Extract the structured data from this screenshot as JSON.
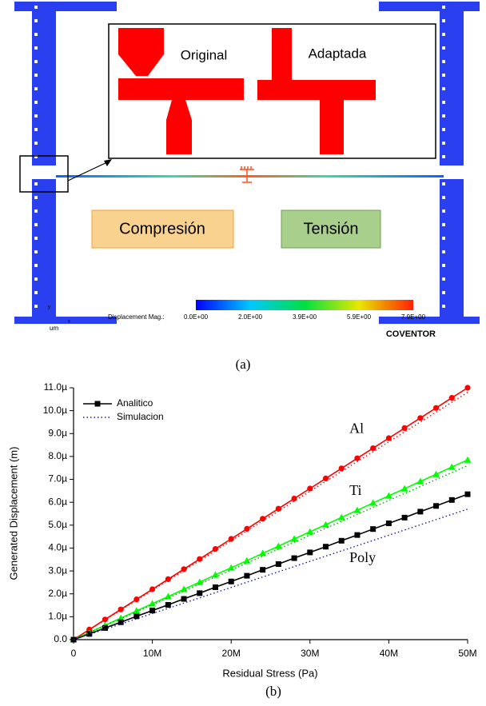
{
  "simulation": {
    "inset_labels": [
      "Original",
      "Adaptada"
    ],
    "regions": [
      "Compresión",
      "Tensión"
    ],
    "colorbar": {
      "label": "Displacement Mag.:",
      "ticks": [
        "0.0E+00",
        "2.0E+00",
        "3.9E+00",
        "5.9E+00",
        "7.9E+00"
      ]
    },
    "axes": [
      "y",
      "x"
    ],
    "unit": "um",
    "brand": "COVENTOR",
    "caption": "(a)"
  },
  "chart_data": {
    "type": "line",
    "caption": "(b)",
    "xlabel": "Residual Stress (Pa)",
    "ylabel": "Generated Displacement (m)",
    "xlim": [
      0,
      50000000
    ],
    "ylim": [
      0,
      1.1e-05
    ],
    "xticks": [
      0,
      {
        "value": 10000000,
        "label": "10M"
      },
      {
        "value": 20000000,
        "label": "20M"
      },
      {
        "value": 30000000,
        "label": "30M"
      },
      {
        "value": 40000000,
        "label": "40M"
      },
      {
        "value": 50000000,
        "label": "50M"
      }
    ],
    "yticks": [
      {
        "value": 0,
        "label": "0.0"
      },
      {
        "value": 1e-06,
        "label": "1.0µ"
      },
      {
        "value": 2e-06,
        "label": "2.0µ"
      },
      {
        "value": 3e-06,
        "label": "3.0µ"
      },
      {
        "value": 4e-06,
        "label": "4.0µ"
      },
      {
        "value": 5e-06,
        "label": "5.0µ"
      },
      {
        "value": 6e-06,
        "label": "6.0µ"
      },
      {
        "value": 7e-06,
        "label": "7.0µ"
      },
      {
        "value": 8e-06,
        "label": "8.0µ"
      },
      {
        "value": 9e-06,
        "label": "9.0µ"
      },
      {
        "value": 1e-05,
        "label": "10.0µ"
      },
      {
        "value": 1.1e-05,
        "label": "11.0µ"
      }
    ],
    "legend": "top-left",
    "x": [
      0,
      2000000,
      4000000,
      6000000,
      8000000,
      10000000,
      12000000,
      14000000,
      16000000,
      18000000,
      20000000,
      22000000,
      24000000,
      26000000,
      28000000,
      30000000,
      32000000,
      34000000,
      36000000,
      38000000,
      40000000,
      42000000,
      44000000,
      46000000,
      48000000,
      50000000
    ],
    "series": [
      {
        "label": "Al",
        "color": "#ff0000",
        "marker": "circle",
        "values": [
          0,
          4.4e-07,
          8.8e-07,
          1.32e-06,
          1.76e-06,
          2.2e-06,
          2.64e-06,
          3.08e-06,
          3.52e-06,
          3.96e-06,
          4.4e-06,
          4.84e-06,
          5.28e-06,
          5.72e-06,
          6.16e-06,
          6.6e-06,
          7.04e-06,
          7.48e-06,
          7.92e-06,
          8.36e-06,
          8.8e-06,
          9.24e-06,
          9.68e-06,
          1.012e-05,
          1.056e-05,
          1.1e-05
        ]
      },
      {
        "label": "Ti",
        "color": "#00ff00",
        "marker": "triangle",
        "values": [
          0,
          3.1e-07,
          6.3e-07,
          9.4e-07,
          1.26e-06,
          1.57e-06,
          1.88e-06,
          2.2e-06,
          2.51e-06,
          2.83e-06,
          3.14e-06,
          3.45e-06,
          3.77e-06,
          4.08e-06,
          4.4e-06,
          4.71e-06,
          5.02e-06,
          5.34e-06,
          5.65e-06,
          5.97e-06,
          6.28e-06,
          6.59e-06,
          6.91e-06,
          7.22e-06,
          7.54e-06,
          7.85e-06
        ]
      },
      {
        "name": "Analitico",
        "label": "Poly",
        "color": "#000000",
        "marker": "square",
        "values": [
          0,
          2.5e-07,
          5.1e-07,
          7.6e-07,
          1.02e-06,
          1.27e-06,
          1.52e-06,
          1.78e-06,
          2.03e-06,
          2.29e-06,
          2.54e-06,
          2.79e-06,
          3.05e-06,
          3.3e-06,
          3.56e-06,
          3.81e-06,
          4.06e-06,
          4.32e-06,
          4.57e-06,
          4.83e-06,
          5.08e-06,
          5.33e-06,
          5.59e-06,
          5.84e-06,
          6.1e-06,
          6.35e-06
        ]
      },
      {
        "color": "#ff0000",
        "dash": true,
        "x": [
          0,
          50000000
        ],
        "values": [
          0,
          1.08e-05
        ]
      },
      {
        "color": "#00b000",
        "dash": true,
        "x": [
          0,
          50000000
        ],
        "values": [
          0,
          7.6e-06
        ]
      },
      {
        "name": "Simulacion",
        "color": "#1a1aa0",
        "dash": true,
        "x": [
          0,
          50000000
        ],
        "values": [
          0,
          5.7e-06
        ]
      }
    ]
  }
}
